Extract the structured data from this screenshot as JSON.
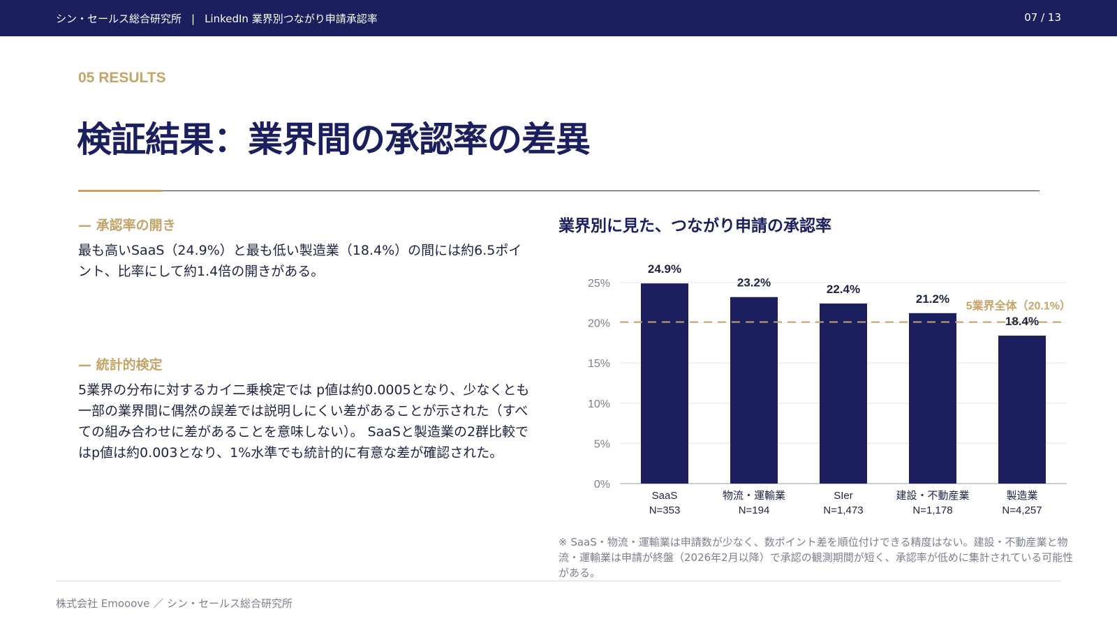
{
  "header": {
    "org": "シン・セールス総合研究所",
    "separator": "|",
    "report_title": "LinkedIn 業界別つながり申請承認率",
    "page_indicator": "07 / 13"
  },
  "section_label": "05  RESULTS",
  "title": "検証結果：業界間の承認率の差異",
  "left": {
    "block1": {
      "heading": "—  承認率の開き",
      "body": "最も高いSaaS（24.9%）と最も低い製造業（18.4%）の間には約6.5ポイント、比率にして約1.4倍の開きがある。"
    },
    "block2": {
      "heading": "—  統計的検定",
      "body": "5業界の分布に対するカイ二乗検定では p値は約0.0005となり、少なくとも一部の業界間に偶然の誤差では説明しにくい差があることが示された（すべての組み合わせに差があることを意味しない）。 SaaSと製造業の2群比較ではp値は約0.003となり、1%水準でも統計的に有意な差が確認された。"
    }
  },
  "chart_title": "業界別に見た、つながり申請の承認率",
  "chart_data": {
    "type": "bar",
    "categories": [
      "SaaS",
      "物流・運輸業",
      "SIer",
      "建設・不動産業",
      "製造業"
    ],
    "sample_sizes": [
      "N=353",
      "N=194",
      "N=1,473",
      "N=1,178",
      "N=4,257"
    ],
    "values": [
      24.9,
      23.2,
      22.4,
      21.2,
      18.4
    ],
    "value_labels": [
      "24.9%",
      "23.2%",
      "22.4%",
      "21.2%",
      "18.4%"
    ],
    "yticks": [
      "0%",
      "5%",
      "10%",
      "15%",
      "20%",
      "25%"
    ],
    "ylim": [
      0,
      25
    ],
    "grid": true,
    "reference_line": {
      "value": 20.1,
      "label": "5業界全体（20.1%）"
    },
    "colors": {
      "bar": "#1b1f5e",
      "reference": "#c4a469",
      "grid": "#e6e6ea",
      "label": "#7c7f8c"
    }
  },
  "note": "※ SaaS・物流・運輸業は申請数が少なく、数ポイント差を順位付けできる精度はない。建設・不動産業と物流・運輸業は申請が終盤（2026年2月以降）で承認の観測期間が短く、承認率が低めに集計されている可能性がある。",
  "footer": "株式会社 Emooove ／ シン・セールス総合研究所",
  "colors": {
    "navy": "#1b1f5e",
    "gold": "#c4a469",
    "gray": "#7c7f8c"
  }
}
